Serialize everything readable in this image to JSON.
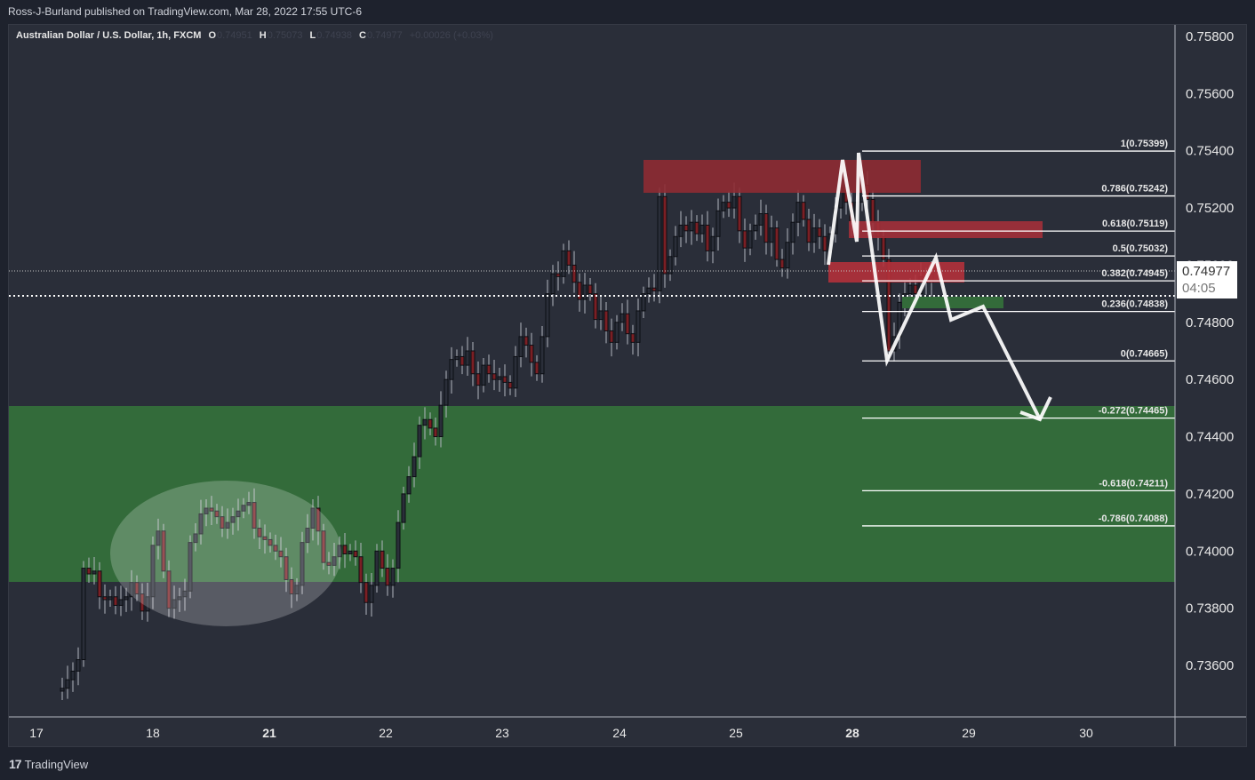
{
  "header": {
    "publisher_line": "Ross-J-Burland published on TradingView.com, Mar 28, 2022 17:55 UTC-6"
  },
  "legend": {
    "symbol": "Australian Dollar / U.S. Dollar, 1h, FXCM",
    "o_label": "O",
    "o_value": "0.74951",
    "h_label": "H",
    "h_value": "0.75073",
    "l_label": "L",
    "l_value": "0.74938",
    "c_label": "C",
    "c_value": "0.74977",
    "change": "+0.00026 (+0.03%)"
  },
  "price_tag": {
    "price": "0.74977",
    "countdown": "04:05"
  },
  "footer": {
    "brand": "TradingView",
    "logo": "tv-logo-icon"
  },
  "colors": {
    "background": "#2a2e39",
    "up_candle": "#2a2e39",
    "down_candle": "#7b1f24",
    "wick": "#b2b5be",
    "demand_zone": "#336b3a",
    "supply_zone": "#8e2b33",
    "supply_zone_bright": "#b2313b",
    "drawing": "#ffffff"
  },
  "chart_data": {
    "type": "candlestick",
    "title": "Australian Dollar / U.S. Dollar, 1h, FXCM",
    "xlabel": "",
    "ylabel": "",
    "ylim": [
      0.7345,
      0.759
    ],
    "grid": false,
    "x_ticks": [
      "17",
      "18",
      "21",
      "22",
      "23",
      "24",
      "25",
      "28",
      "29",
      "30"
    ],
    "y_ticks": [
      "0.75800",
      "0.75600",
      "0.75400",
      "0.75200",
      "0.75000",
      "0.74800",
      "0.74600",
      "0.74400",
      "0.74200",
      "0.74000",
      "0.73800",
      "0.73600"
    ],
    "last_price": 0.74977,
    "ohlc_last": {
      "open": 0.74951,
      "high": 0.75073,
      "low": 0.74938,
      "close": 0.74977
    },
    "fibonacci": [
      {
        "level": "1",
        "price": 0.75399,
        "label": "1(0.75399)"
      },
      {
        "level": "0.786",
        "price": 0.75242,
        "label": "0.786(0.75242)"
      },
      {
        "level": "0.618",
        "price": 0.75119,
        "label": "0.618(0.75119)"
      },
      {
        "level": "0.5",
        "price": 0.75032,
        "label": "0.5(0.75032)"
      },
      {
        "level": "0.382",
        "price": 0.74945,
        "label": "0.382(0.74945)"
      },
      {
        "level": "0.236",
        "price": 0.74838,
        "label": "0.236(0.74838)"
      },
      {
        "level": "0",
        "price": 0.74665,
        "label": "0(0.74665)"
      },
      {
        "level": "-0.272",
        "price": 0.74465,
        "label": "-0.272(0.74465)"
      },
      {
        "level": "-0.618",
        "price": 0.74211,
        "label": "-0.618(0.74211)"
      },
      {
        "level": "-0.786",
        "price": 0.74088,
        "label": "-0.786(0.74088)"
      }
    ],
    "zones": [
      {
        "type": "demand",
        "from": 0.739,
        "to": 0.7451
      },
      {
        "type": "supply",
        "from": 0.7525,
        "to": 0.7537
      },
      {
        "type": "supply",
        "from": 0.7509,
        "to": 0.7515
      },
      {
        "type": "supply",
        "from": 0.7494,
        "to": 0.7501
      },
      {
        "type": "demand",
        "from": 0.7484,
        "to": 0.7488
      }
    ],
    "projection_path": [
      {
        "x": "28 02:00",
        "price": 0.754
      },
      {
        "x": "28 09:00",
        "price": 0.7467
      },
      {
        "x": "28 17:00",
        "price": 0.7503
      },
      {
        "x": "29 00:00",
        "price": 0.7481
      },
      {
        "x": "29 04:00",
        "price": 0.7485
      },
      {
        "x": "29 17:00",
        "price": 0.7446
      }
    ],
    "annotations": [
      "ellipse consolidation around 0.7380-0.7420 on Mar 18-21"
    ]
  }
}
